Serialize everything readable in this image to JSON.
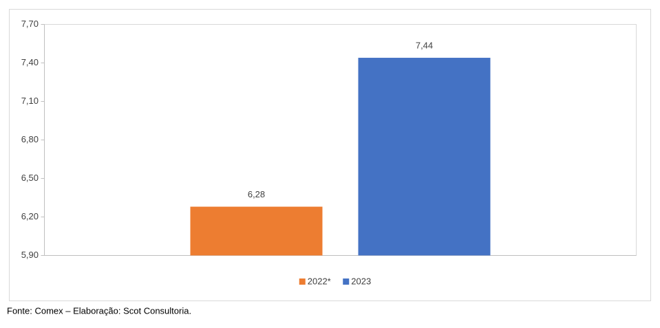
{
  "chart_data": {
    "type": "bar",
    "categories": [
      null
    ],
    "series": [
      {
        "name": "2022*",
        "color": "#ed7d31",
        "values": [
          6.28
        ],
        "value_labels": [
          "6,28"
        ]
      },
      {
        "name": "2023",
        "color": "#4472c4",
        "values": [
          7.44
        ],
        "value_labels": [
          "7,44"
        ]
      }
    ],
    "ylim": [
      5.9,
      7.7
    ],
    "yticks": [
      {
        "value": 5.9,
        "label": "5,90"
      },
      {
        "value": 6.2,
        "label": "6,20"
      },
      {
        "value": 6.5,
        "label": "6,50"
      },
      {
        "value": 6.8,
        "label": "6,80"
      },
      {
        "value": 7.1,
        "label": "7,10"
      },
      {
        "value": 7.4,
        "label": "7,40"
      },
      {
        "value": 7.7,
        "label": "7,70"
      }
    ],
    "grid": false,
    "legend": "bottom",
    "source": "Fonte: Comex – Elaboração: Scot Consultoria."
  }
}
